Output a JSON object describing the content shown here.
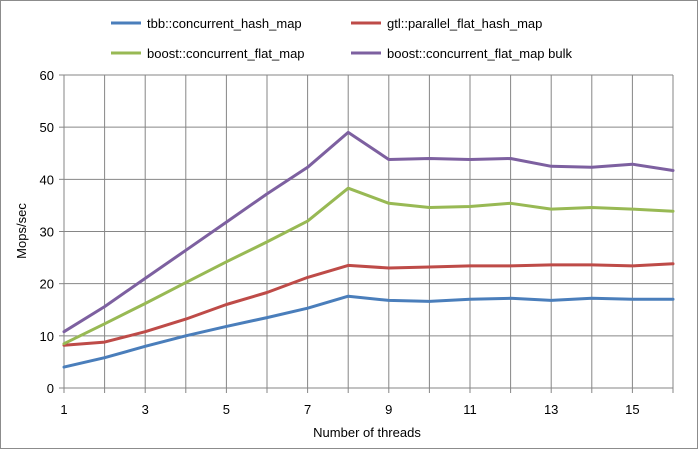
{
  "chart_data": {
    "type": "line",
    "title": "",
    "xlabel": "Number of threads",
    "ylabel": "Mops/sec",
    "xlim": [
      1,
      16
    ],
    "ylim": [
      0,
      60
    ],
    "x_ticks": [
      1,
      3,
      5,
      7,
      9,
      11,
      13,
      15
    ],
    "y_ticks": [
      0,
      10,
      20,
      30,
      40,
      50,
      60
    ],
    "grid": true,
    "legend_position": "top",
    "x": [
      1,
      2,
      3,
      4,
      5,
      6,
      7,
      8,
      9,
      10,
      11,
      12,
      13,
      14,
      15,
      16
    ],
    "series": [
      {
        "name": "tbb::concurrent_hash_map",
        "color": "#4a7ebb",
        "values": [
          4.0,
          5.8,
          8.0,
          10.0,
          11.8,
          13.5,
          15.3,
          17.6,
          16.8,
          16.6,
          17.0,
          17.2,
          16.8,
          17.2,
          17.0,
          17.0
        ]
      },
      {
        "name": "gtl::parallel_flat_hash_map",
        "color": "#be4b48",
        "values": [
          8.2,
          8.8,
          10.8,
          13.2,
          16.0,
          18.3,
          21.2,
          23.5,
          23.0,
          23.2,
          23.4,
          23.4,
          23.6,
          23.6,
          23.4,
          23.8
        ]
      },
      {
        "name": "boost::concurrent_flat_map",
        "color": "#98b954",
        "values": [
          8.5,
          12.3,
          16.2,
          20.2,
          24.2,
          28.0,
          32.0,
          38.3,
          35.4,
          34.6,
          34.8,
          35.4,
          34.3,
          34.6,
          34.3,
          33.9
        ]
      },
      {
        "name": "boost::concurrent_flat_map bulk",
        "color": "#7d60a0",
        "values": [
          10.8,
          15.6,
          21.0,
          26.4,
          31.8,
          37.2,
          42.3,
          49.0,
          43.8,
          44.0,
          43.8,
          44.0,
          42.5,
          42.3,
          42.9,
          41.7
        ]
      }
    ]
  }
}
